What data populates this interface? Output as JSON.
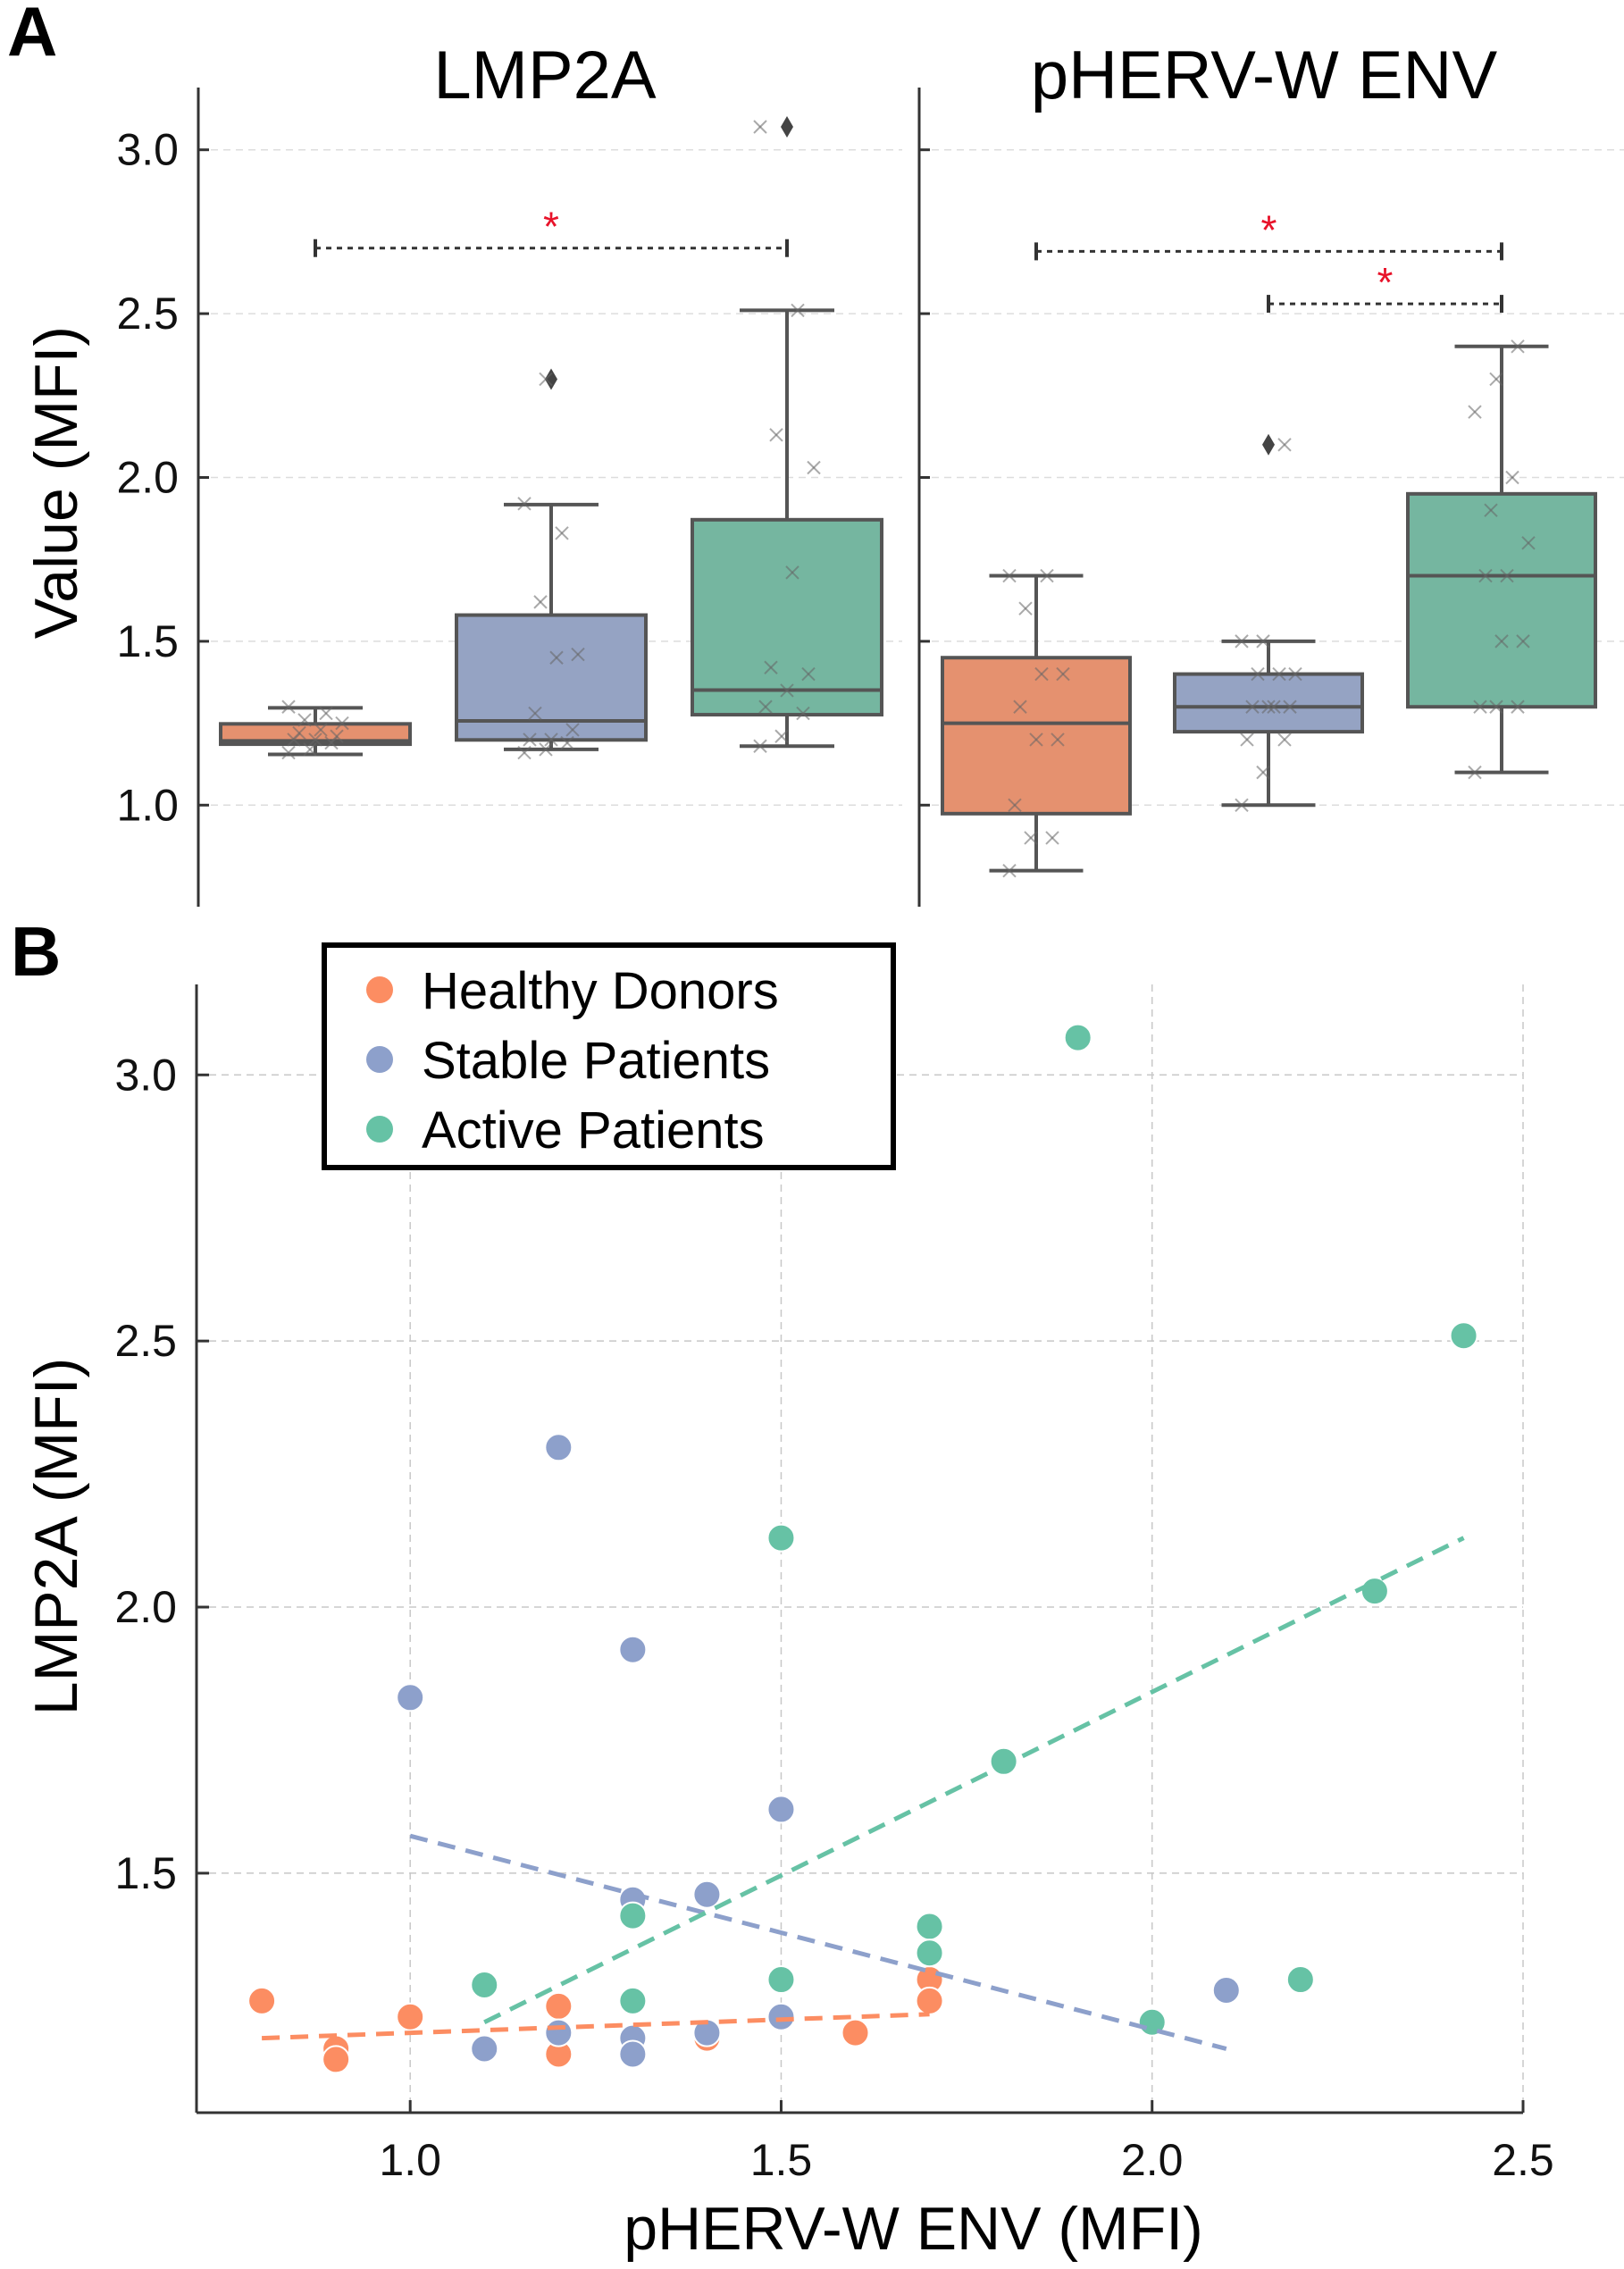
{
  "colors": {
    "healthy": "#fc8d62",
    "stable": "#8da0cb",
    "active": "#66c2a5",
    "healthy_box": "#e5916f",
    "stable_box": "#95a3c3",
    "active_box": "#75b6a0",
    "significance": "#e8132a"
  },
  "panel_letters": {
    "a": "A",
    "b": "B"
  },
  "chart_data": [
    {
      "type": "box",
      "panel": "A",
      "ylabel": "Value (MFI)",
      "ylim": [
        0.69,
        3.19
      ],
      "yticks": [
        1.0,
        1.5,
        2.0,
        2.5,
        3.0
      ],
      "ytick_labels": [
        "1.0",
        "1.5",
        "2.0",
        "2.5",
        "3.0"
      ],
      "grid": true,
      "subplots": [
        {
          "title": "LMP2A",
          "groups": [
            {
              "name": "Healthy Donors",
              "color_key": "healthy_box",
              "whisker_low": 1.155,
              "q1": 1.186,
              "median": 1.196,
              "q3": 1.248,
              "whisker_high": 1.297,
              "outliers": [],
              "points": [
                1.16,
                1.17,
                1.19,
                1.2,
                1.2,
                1.21,
                1.22,
                1.23,
                1.25,
                1.26,
                1.28,
                1.3
              ]
            },
            {
              "name": "Stable Patients",
              "color_key": "stable_box",
              "whisker_low": 1.17,
              "q1": 1.199,
              "median": 1.257,
              "q3": 1.58,
              "whisker_high": 1.917,
              "outliers": [
                2.3
              ],
              "points": [
                1.16,
                1.17,
                1.19,
                1.2,
                1.2,
                1.23,
                1.28,
                1.45,
                1.46,
                1.62,
                1.83,
                1.92,
                2.3
              ]
            },
            {
              "name": "Active Patients",
              "color_key": "active_box",
              "whisker_low": 1.18,
              "q1": 1.276,
              "median": 1.351,
              "q3": 1.871,
              "whisker_high": 2.51,
              "outliers": [
                3.07
              ],
              "points": [
                1.18,
                1.21,
                1.28,
                1.3,
                1.35,
                1.4,
                1.42,
                1.71,
                2.03,
                2.13,
                2.51,
                3.07
              ]
            }
          ],
          "significance": [
            {
              "from": 0,
              "to": 2,
              "y": 2.7,
              "label": "*"
            }
          ]
        },
        {
          "title": "pHERV-W ENV",
          "groups": [
            {
              "name": "Healthy Donors",
              "color_key": "healthy_box",
              "whisker_low": 0.8,
              "q1": 0.974,
              "median": 1.25,
              "q3": 1.45,
              "whisker_high": 1.7,
              "outliers": [],
              "points": [
                0.8,
                0.9,
                0.9,
                1.0,
                1.2,
                1.2,
                1.3,
                1.4,
                1.4,
                1.6,
                1.7,
                1.7
              ]
            },
            {
              "name": "Stable Patients",
              "color_key": "stable_box",
              "whisker_low": 1.0,
              "q1": 1.224,
              "median": 1.3,
              "q3": 1.4,
              "whisker_high": 1.5,
              "outliers": [
                2.1
              ],
              "points": [
                1.0,
                1.1,
                1.2,
                1.2,
                1.3,
                1.3,
                1.3,
                1.3,
                1.4,
                1.4,
                1.4,
                1.5,
                1.5,
                2.1
              ]
            },
            {
              "name": "Active Patients",
              "color_key": "active_box",
              "whisker_low": 1.1,
              "q1": 1.3,
              "median": 1.7,
              "q3": 1.95,
              "whisker_high": 2.4,
              "outliers": [],
              "points": [
                1.1,
                1.3,
                1.3,
                1.3,
                1.5,
                1.5,
                1.7,
                1.7,
                1.8,
                1.9,
                2.0,
                2.2,
                2.3,
                2.4
              ]
            }
          ],
          "significance": [
            {
              "from": 0,
              "to": 2,
              "y": 2.69,
              "label": "*"
            },
            {
              "from": 1,
              "to": 2,
              "y": 2.53,
              "label": "*"
            }
          ]
        }
      ]
    },
    {
      "type": "scatter",
      "panel": "B",
      "xlabel": "pHERV-W ENV (MFI)",
      "ylabel": "LMP2A (MFI)",
      "xlim": [
        0.712,
        2.5
      ],
      "ylim": [
        1.05,
        3.17
      ],
      "xticks": [
        1.0,
        1.5,
        2.0,
        2.5
      ],
      "xtick_labels": [
        "1.0",
        "1.5",
        "2.0",
        "2.5"
      ],
      "yticks": [
        1.5,
        2.0,
        2.5,
        3.0
      ],
      "ytick_labels": [
        "1.5",
        "2.0",
        "2.5",
        "3.0"
      ],
      "grid": true,
      "legend_position": "top-left",
      "series": [
        {
          "name": "Healthy Donors",
          "color_key": "healthy",
          "points": [
            [
              0.8,
              1.26
            ],
            [
              0.9,
              1.17
            ],
            [
              0.9,
              1.15
            ],
            [
              1.0,
              1.23
            ],
            [
              1.2,
              1.25
            ],
            [
              1.2,
              1.16
            ],
            [
              1.4,
              1.19
            ],
            [
              1.6,
              1.2
            ],
            [
              1.7,
              1.3
            ],
            [
              1.7,
              1.26
            ]
          ],
          "trend": [
            [
              0.8,
              1.19
            ],
            [
              1.7,
              1.235
            ]
          ]
        },
        {
          "name": "Stable Patients",
          "color_key": "stable",
          "points": [
            [
              1.0,
              1.83
            ],
            [
              1.1,
              1.17
            ],
            [
              1.2,
              2.3
            ],
            [
              1.2,
              1.2
            ],
            [
              1.3,
              1.92
            ],
            [
              1.3,
              1.45
            ],
            [
              1.3,
              1.19
            ],
            [
              1.3,
              1.16
            ],
            [
              1.4,
              1.46
            ],
            [
              1.4,
              1.2
            ],
            [
              1.5,
              1.62
            ],
            [
              1.5,
              1.23
            ],
            [
              2.1,
              1.28
            ]
          ],
          "trend": [
            [
              1.0,
              1.57
            ],
            [
              2.1,
              1.17
            ]
          ]
        },
        {
          "name": "Active Patients",
          "color_key": "active",
          "points": [
            [
              1.1,
              1.29
            ],
            [
              1.3,
              1.42
            ],
            [
              1.3,
              1.26
            ],
            [
              1.5,
              2.13
            ],
            [
              1.5,
              1.3
            ],
            [
              1.7,
              1.4
            ],
            [
              1.7,
              1.35
            ],
            [
              1.8,
              1.71
            ],
            [
              1.9,
              3.07
            ],
            [
              2.0,
              1.22
            ],
            [
              2.2,
              1.3
            ],
            [
              2.3,
              2.03
            ],
            [
              2.42,
              2.51
            ]
          ],
          "trend": [
            [
              1.1,
              1.22
            ],
            [
              2.42,
              2.13
            ]
          ]
        }
      ]
    }
  ]
}
